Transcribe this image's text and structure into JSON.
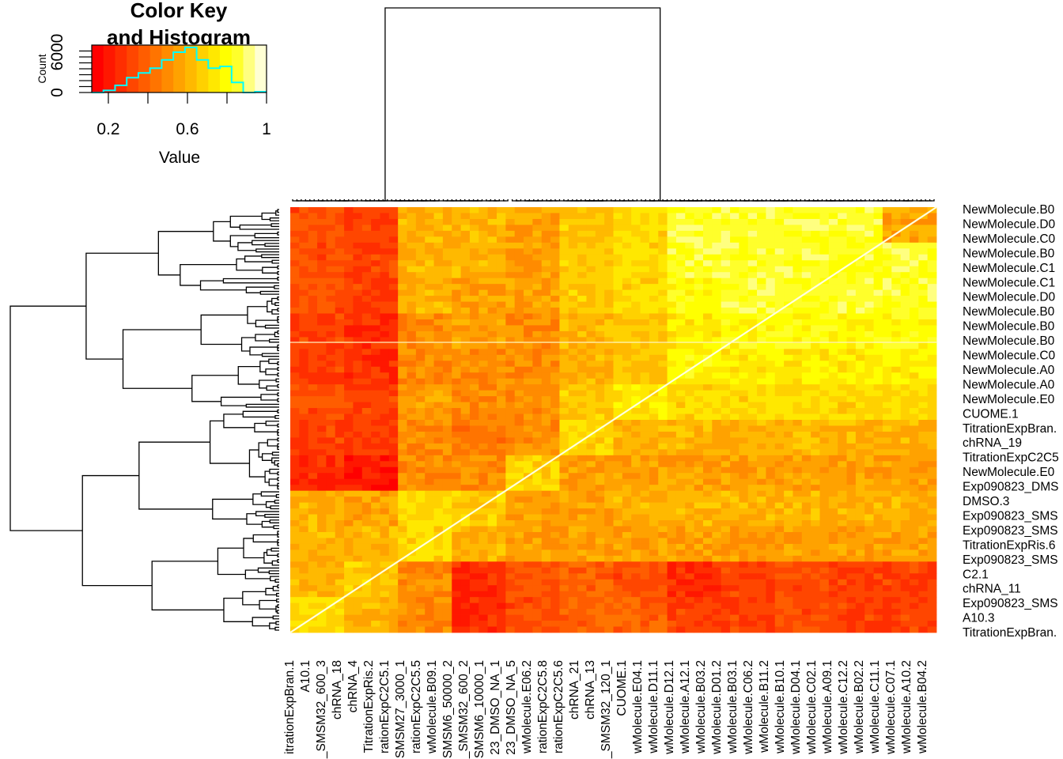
{
  "chart_data": {
    "type": "heatmap",
    "color_key": {
      "title_line1": "Color Key",
      "title_line2": "and Histogram",
      "xlabel": "Value",
      "ylabel": "Count",
      "x_ticks": [
        "0.2",
        "0.6",
        "1"
      ],
      "y_ticks": [
        "0",
        "6000"
      ],
      "xlim": [
        0.116,
        1.0
      ],
      "histogram_color": "#00FFFF",
      "histogram_counts": [
        0,
        350,
        1200,
        2500,
        3300,
        4100,
        5500,
        6800,
        7600,
        5500,
        4100,
        4400,
        1700,
        0,
        130
      ],
      "palette": "heat"
    },
    "column_labels": [
      "itrationExpBran.1",
      "A10.1",
      "_SMSM32_600_3",
      "chRNA_18",
      "chRNA_4",
      "TitrationExpRis.2",
      "rationExpC2C5.1",
      "SMSM27_3000_1",
      "rationExpC2C5.5",
      "wMolecule.B09.1",
      "SMSM6_50000_2",
      "_SMSM32_600_2",
      "SMSM6_10000_1",
      "23_DMSO_NA_1",
      "23_DMSO_NA_5",
      "wMolecule.E06.2",
      "rationExpC2C5.8",
      "rationExpC2C5.6",
      "chRNA_21",
      "chRNA_13",
      "_SMSM32_120_1",
      "CUOME.1",
      "wMolecule.E04.1",
      "wMolecule.D11.1",
      "wMolecule.D12.1",
      "wMolecule.A12.1",
      "wMolecule.B03.2",
      "wMolecule.D01.2",
      "wMolecule.B03.1",
      "wMolecule.C06.2",
      "wMolecule.B11.2",
      "wMolecule.B10.1",
      "wMolecule.D04.1",
      "wMolecule.C02.1",
      "wMolecule.A09.1",
      "wMolecule.C12.2",
      "wMolecule.B02.2",
      "wMolecule.C11.1",
      "wMolecule.C07.1",
      "wMolecule.A10.2",
      "wMolecule.B04.2"
    ],
    "row_labels": [
      "NewMolecule.B0",
      "NewMolecule.D0",
      "NewMolecule.C0",
      "NewMolecule.B0",
      "NewMolecule.C1",
      "NewMolecule.C1",
      "NewMolecule.D0",
      "NewMolecule.B0",
      "NewMolecule.B0",
      "NewMolecule.B0",
      "NewMolecule.C0",
      "NewMolecule.A0",
      "NewMolecule.A0",
      "NewMolecule.E0",
      "CUOME.1",
      "TitrationExpBran.",
      "chRNA_19",
      "TitrationExpC2C5",
      "NewMolecule.E0",
      "Exp090823_DMS",
      "DMSO.3",
      "Exp090823_SMS",
      "Exp090823_SMS",
      "TitrationExpRis.6",
      "Exp090823_SMS",
      "C2.1",
      "chRNA_11",
      "Exp090823_SMS",
      "A10.3",
      "TitrationExpBran."
    ],
    "matrix_coarse": [
      [
        0.35,
        0.3,
        0.6,
        0.6,
        0.55,
        0.65,
        0.7,
        0.85,
        0.85,
        0.85,
        0.85,
        0.95
      ],
      [
        0.35,
        0.3,
        0.6,
        0.6,
        0.55,
        0.65,
        0.7,
        0.85,
        0.85,
        0.85,
        0.95,
        0.85
      ],
      [
        0.35,
        0.3,
        0.6,
        0.55,
        0.55,
        0.65,
        0.7,
        0.8,
        0.85,
        0.95,
        0.85,
        0.85
      ],
      [
        0.3,
        0.25,
        0.5,
        0.55,
        0.5,
        0.6,
        0.65,
        0.75,
        0.95,
        0.8,
        0.8,
        0.8
      ],
      [
        0.3,
        0.25,
        0.5,
        0.5,
        0.5,
        0.6,
        0.65,
        0.95,
        0.75,
        0.75,
        0.75,
        0.75
      ],
      [
        0.35,
        0.3,
        0.55,
        0.5,
        0.5,
        0.65,
        0.95,
        0.7,
        0.7,
        0.7,
        0.7,
        0.7
      ],
      [
        0.3,
        0.3,
        0.5,
        0.45,
        0.5,
        0.95,
        0.6,
        0.6,
        0.6,
        0.6,
        0.6,
        0.6
      ],
      [
        0.25,
        0.2,
        0.5,
        0.5,
        0.95,
        0.55,
        0.55,
        0.55,
        0.55,
        0.55,
        0.55,
        0.55
      ],
      [
        0.6,
        0.55,
        0.7,
        0.95,
        0.55,
        0.55,
        0.6,
        0.6,
        0.6,
        0.6,
        0.6,
        0.6
      ],
      [
        0.6,
        0.6,
        0.95,
        0.6,
        0.55,
        0.55,
        0.55,
        0.55,
        0.55,
        0.55,
        0.55,
        0.55
      ],
      [
        0.6,
        0.95,
        0.5,
        0.25,
        0.35,
        0.4,
        0.35,
        0.25,
        0.3,
        0.35,
        0.3,
        0.3
      ],
      [
        0.95,
        0.6,
        0.5,
        0.25,
        0.35,
        0.4,
        0.4,
        0.3,
        0.3,
        0.35,
        0.3,
        0.3
      ]
    ],
    "diagonal_value": 1.0,
    "grid": false,
    "dendrograms": [
      "top",
      "left"
    ]
  }
}
